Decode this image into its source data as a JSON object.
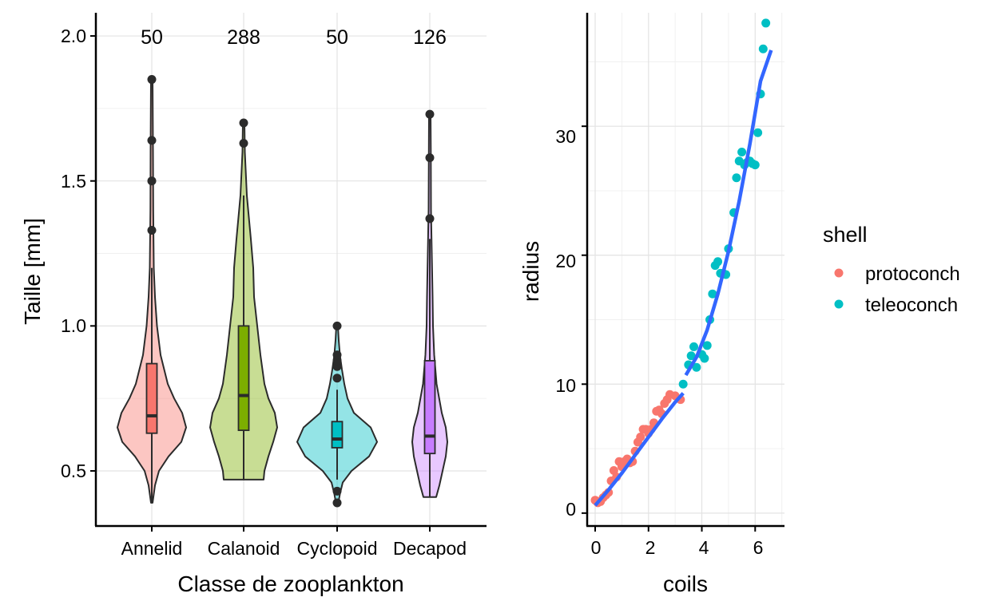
{
  "chart_data": [
    {
      "type": "violin",
      "xlabel": "Classe de zooplankton",
      "ylabel": "Taille [mm]",
      "ylim": [
        0.31,
        2.08
      ],
      "yticks": [
        "0.5",
        "1.0",
        "1.5",
        "2.0"
      ],
      "ytick_values": [
        0.5,
        1.0,
        1.5,
        2.0
      ],
      "grid": true,
      "categories": [
        "Annelid",
        "Calanoid",
        "Cyclopoid",
        "Decapod"
      ],
      "counts": [
        "50",
        "288",
        "50",
        "126"
      ],
      "fill_colors": [
        "#F8766D",
        "#7CAE00",
        "#00BFC4",
        "#C77CFF"
      ],
      "violins": [
        {
          "min": 0.39,
          "max": 1.85,
          "shape": [
            [
              0.39,
              0.02
            ],
            [
              0.45,
              0.08
            ],
            [
              0.5,
              0.18
            ],
            [
              0.55,
              0.42
            ],
            [
              0.6,
              0.74
            ],
            [
              0.65,
              0.86
            ],
            [
              0.7,
              0.76
            ],
            [
              0.75,
              0.56
            ],
            [
              0.8,
              0.4
            ],
            [
              0.9,
              0.22
            ],
            [
              1.0,
              0.13
            ],
            [
              1.1,
              0.08
            ],
            [
              1.2,
              0.05
            ],
            [
              1.4,
              0.035
            ],
            [
              1.6,
              0.03
            ],
            [
              1.85,
              0.02
            ]
          ]
        },
        {
          "min": 0.47,
          "max": 1.7,
          "shape": [
            [
              0.47,
              0.5
            ],
            [
              0.5,
              0.52
            ],
            [
              0.55,
              0.62
            ],
            [
              0.6,
              0.74
            ],
            [
              0.65,
              0.84
            ],
            [
              0.7,
              0.78
            ],
            [
              0.75,
              0.62
            ],
            [
              0.8,
              0.52
            ],
            [
              0.9,
              0.42
            ],
            [
              1.0,
              0.34
            ],
            [
              1.1,
              0.26
            ],
            [
              1.2,
              0.24
            ],
            [
              1.3,
              0.18
            ],
            [
              1.45,
              0.08
            ],
            [
              1.6,
              0.03
            ],
            [
              1.7,
              0.02
            ]
          ]
        },
        {
          "min": 0.39,
          "max": 1.0,
          "shape": [
            [
              0.39,
              0.03
            ],
            [
              0.42,
              0.07
            ],
            [
              0.46,
              0.14
            ],
            [
              0.5,
              0.36
            ],
            [
              0.55,
              0.8
            ],
            [
              0.6,
              1.0
            ],
            [
              0.65,
              0.84
            ],
            [
              0.7,
              0.42
            ],
            [
              0.75,
              0.26
            ],
            [
              0.8,
              0.18
            ],
            [
              0.85,
              0.12
            ],
            [
              0.9,
              0.07
            ],
            [
              0.95,
              0.04
            ],
            [
              1.0,
              0.02
            ]
          ]
        },
        {
          "min": 0.41,
          "max": 1.73,
          "shape": [
            [
              0.41,
              0.16
            ],
            [
              0.45,
              0.24
            ],
            [
              0.5,
              0.32
            ],
            [
              0.55,
              0.4
            ],
            [
              0.6,
              0.44
            ],
            [
              0.65,
              0.4
            ],
            [
              0.7,
              0.3
            ],
            [
              0.8,
              0.17
            ],
            [
              0.9,
              0.11
            ],
            [
              1.0,
              0.08
            ],
            [
              1.1,
              0.07
            ],
            [
              1.25,
              0.05
            ],
            [
              1.4,
              0.03
            ],
            [
              1.6,
              0.025
            ],
            [
              1.73,
              0.02
            ]
          ]
        }
      ],
      "boxes": [
        {
          "q1": 0.63,
          "median": 0.69,
          "q3": 0.87,
          "whisker_low": 0.39,
          "whisker_high": 1.2,
          "outliers": [
            1.33,
            1.5,
            1.64,
            1.85
          ]
        },
        {
          "q1": 0.64,
          "median": 0.76,
          "q3": 1.0,
          "whisker_low": 0.47,
          "whisker_high": 1.45,
          "outliers": [
            1.63,
            1.7
          ]
        },
        {
          "q1": 0.58,
          "median": 0.61,
          "q3": 0.67,
          "whisker_low": 0.47,
          "whisker_high": 0.78,
          "outliers": [
            0.39,
            0.43,
            0.82,
            0.86,
            0.88,
            0.9,
            1.0
          ]
        },
        {
          "q1": 0.56,
          "median": 0.62,
          "q3": 0.88,
          "whisker_low": 0.41,
          "whisker_high": 1.3,
          "outliers": [
            1.37,
            1.58,
            1.73
          ]
        }
      ]
    },
    {
      "type": "scatter",
      "xlabel": "coils",
      "ylabel": "radius",
      "xlim": [
        -0.3,
        7.1
      ],
      "ylim": [
        -1.0,
        38.8
      ],
      "xticks": [
        "0",
        "2",
        "4",
        "6"
      ],
      "xtick_values": [
        0,
        2,
        4,
        6
      ],
      "yticks": [
        "0",
        "10",
        "20",
        "30"
      ],
      "ytick_values": [
        0,
        10,
        20,
        30
      ],
      "grid": true,
      "legend": {
        "title": "shell",
        "position": "right",
        "entries": [
          {
            "label": "protoconch",
            "color": "#F8766D"
          },
          {
            "label": "teleoconch",
            "color": "#00BFC4"
          }
        ]
      },
      "series": [
        {
          "name": "protoconch",
          "color": "#F8766D",
          "points": [
            [
              0.0,
              1.0
            ],
            [
              0.1,
              0.8
            ],
            [
              0.2,
              0.9
            ],
            [
              0.3,
              1.2
            ],
            [
              0.4,
              1.4
            ],
            [
              0.5,
              1.6
            ],
            [
              0.6,
              2.5
            ],
            [
              0.7,
              3.3
            ],
            [
              0.8,
              2.8
            ],
            [
              0.9,
              4.0
            ],
            [
              1.0,
              3.6
            ],
            [
              1.1,
              4.0
            ],
            [
              1.2,
              4.2
            ],
            [
              1.3,
              3.9
            ],
            [
              1.4,
              4.0
            ],
            [
              1.5,
              4.8
            ],
            [
              1.6,
              5.5
            ],
            [
              1.7,
              5.9
            ],
            [
              1.8,
              6.5
            ],
            [
              1.9,
              6.5
            ],
            [
              2.0,
              6.2
            ],
            [
              2.1,
              6.5
            ],
            [
              2.2,
              7.0
            ],
            [
              2.3,
              7.9
            ],
            [
              2.4,
              8.0
            ],
            [
              2.5,
              7.7
            ],
            [
              2.6,
              8.5
            ],
            [
              2.7,
              8.8
            ],
            [
              2.8,
              9.2
            ],
            [
              3.0,
              9.1
            ],
            [
              3.2,
              8.8
            ]
          ]
        },
        {
          "name": "teleoconch",
          "color": "#00BFC4",
          "points": [
            [
              3.3,
              10.0
            ],
            [
              3.5,
              11.5
            ],
            [
              3.6,
              12.2
            ],
            [
              3.7,
              12.9
            ],
            [
              3.8,
              11.3
            ],
            [
              4.0,
              12.3
            ],
            [
              4.1,
              12.0
            ],
            [
              4.2,
              13.0
            ],
            [
              4.3,
              15.0
            ],
            [
              4.4,
              17.0
            ],
            [
              4.5,
              19.2
            ],
            [
              4.6,
              19.5
            ],
            [
              4.7,
              18.6
            ],
            [
              4.8,
              18.6
            ],
            [
              4.9,
              18.5
            ],
            [
              5.0,
              20.5
            ],
            [
              5.2,
              23.3
            ],
            [
              5.3,
              26.0
            ],
            [
              5.4,
              27.3
            ],
            [
              5.5,
              28.0
            ],
            [
              5.6,
              27.0
            ],
            [
              5.7,
              27.2
            ],
            [
              5.8,
              27.3
            ],
            [
              5.9,
              27.1
            ],
            [
              6.0,
              27.0
            ],
            [
              6.1,
              29.5
            ],
            [
              6.2,
              32.5
            ],
            [
              6.3,
              36.0
            ],
            [
              6.4,
              38.0
            ]
          ]
        }
      ],
      "smooth_lines": [
        {
          "name": "protoconch",
          "color": "#3366FF",
          "points": [
            [
              0.0,
              0.6
            ],
            [
              0.5,
              1.8
            ],
            [
              1.0,
              3.1
            ],
            [
              1.5,
              4.5
            ],
            [
              2.0,
              5.9
            ],
            [
              2.5,
              7.3
            ],
            [
              3.0,
              8.6
            ],
            [
              3.3,
              9.3
            ]
          ]
        },
        {
          "name": "teleoconch",
          "color": "#3366FF",
          "points": [
            [
              3.4,
              10.7
            ],
            [
              3.8,
              12.1
            ],
            [
              4.2,
              14.2
            ],
            [
              4.6,
              17.0
            ],
            [
              5.0,
              20.3
            ],
            [
              5.4,
              24.2
            ],
            [
              5.8,
              28.6
            ],
            [
              6.2,
              33.5
            ],
            [
              6.6,
              35.9
            ]
          ]
        }
      ]
    }
  ]
}
